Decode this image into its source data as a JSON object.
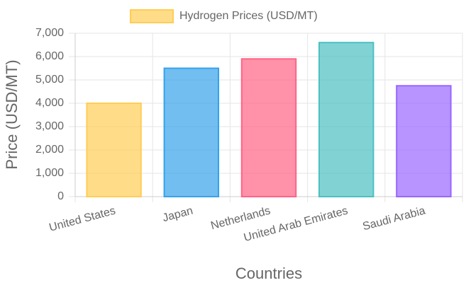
{
  "chart_data": {
    "type": "bar",
    "categories": [
      "United States",
      "Japan",
      "Netherlands",
      "United Arab Emirates",
      "Saudi Arabia"
    ],
    "series": [
      {
        "name": "Hydrogen Prices (USD/MT)",
        "values": [
          4000,
          5500,
          5900,
          6600,
          4750
        ],
        "colors": [
          "#ffcd56",
          "#36a2eb",
          "#ff6384",
          "#4bc0c0",
          "#9966ff"
        ]
      }
    ],
    "x_label": "Countries",
    "y_label": "Price (USD/MT)",
    "ylim": [
      0,
      7000
    ],
    "yticks": [
      0,
      {
        "value": 1000,
        "label": "1,000"
      },
      {
        "value": 2000,
        "label": "2,000"
      },
      {
        "value": 3000,
        "label": "3,000"
      },
      {
        "value": 4000,
        "label": "4,000"
      },
      {
        "value": 5000,
        "label": "5,000"
      },
      {
        "value": 6000,
        "label": "6,000"
      },
      {
        "value": 7000,
        "label": "7,000"
      }
    ],
    "grid": true,
    "legend": "top"
  }
}
